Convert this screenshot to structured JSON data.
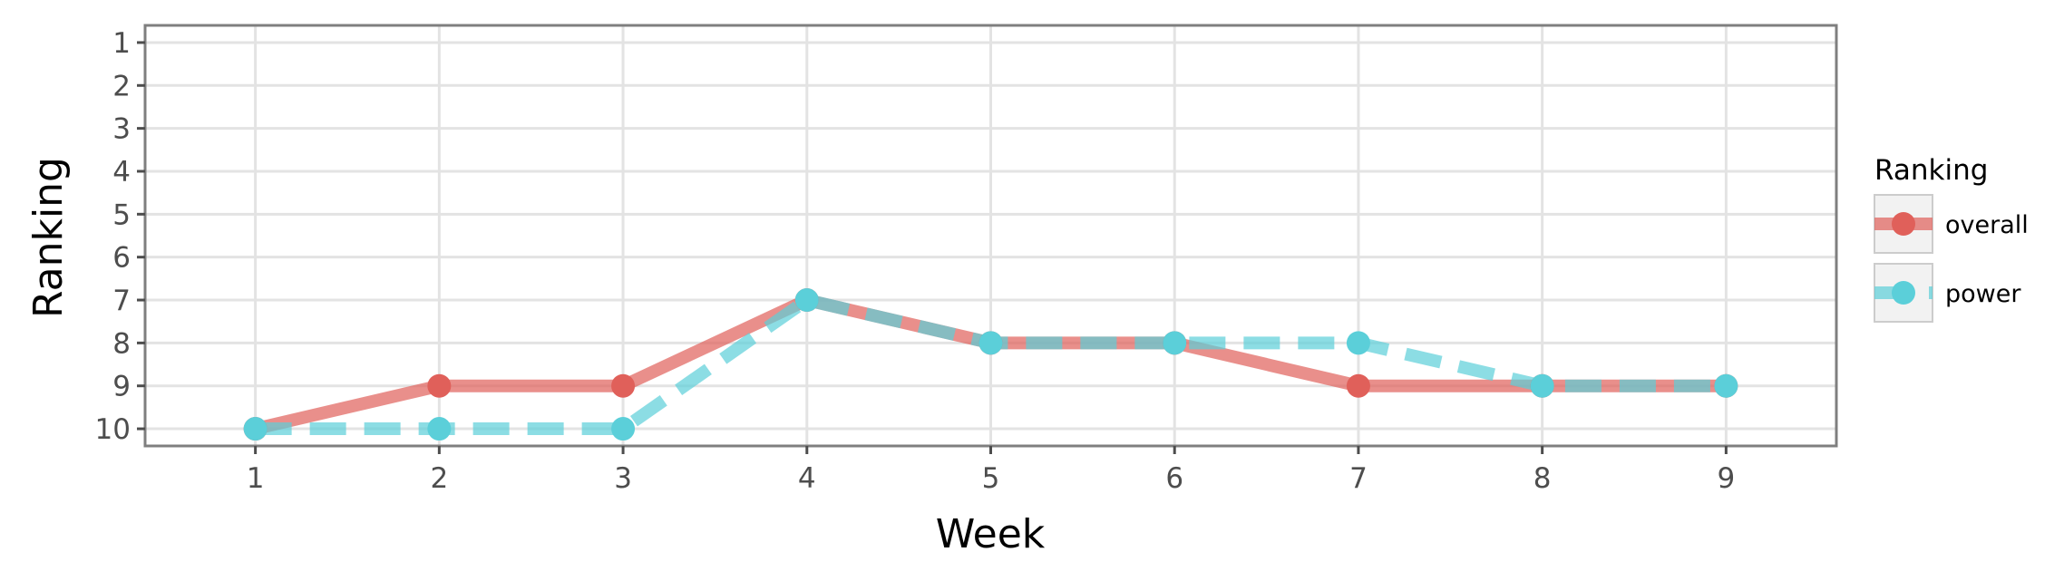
{
  "chart_data": {
    "type": "line",
    "xlabel": "Week",
    "ylabel": "Ranking",
    "x": [
      1,
      2,
      3,
      4,
      5,
      6,
      7,
      8,
      9
    ],
    "xlim": [
      0.4,
      9.6
    ],
    "ylim": [
      10.4,
      0.6
    ],
    "y_reversed": true,
    "x_ticks": [
      1,
      2,
      3,
      4,
      5,
      6,
      7,
      8,
      9
    ],
    "y_ticks": [
      1,
      2,
      3,
      4,
      5,
      6,
      7,
      8,
      9,
      10
    ],
    "grid": true,
    "legend_title": "Ranking",
    "legend_position": "right",
    "series": [
      {
        "name": "overall",
        "values": [
          10,
          9,
          9,
          7,
          8,
          8,
          9,
          9,
          9
        ],
        "color": "#E0605A",
        "line_style": "solid"
      },
      {
        "name": "power",
        "values": [
          10,
          10,
          10,
          7,
          8,
          8,
          8,
          9,
          9
        ],
        "color": "#5BCFD9",
        "line_style": "dashed"
      }
    ]
  }
}
